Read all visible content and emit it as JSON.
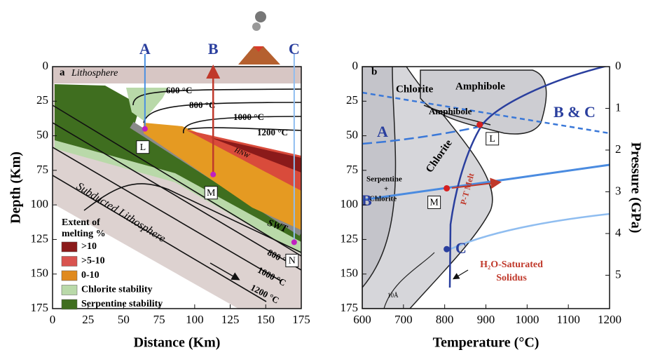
{
  "chart_data": [
    {
      "type": "section",
      "label": "a",
      "xlabel": "Distance (Km)",
      "ylabel": "Depth (Km)",
      "xlim": [
        0,
        175
      ],
      "xticks": [
        0,
        25,
        50,
        75,
        100,
        125,
        150,
        175
      ],
      "ylim": [
        0,
        175
      ],
      "yticks": [
        0,
        25,
        50,
        75,
        100,
        125,
        150,
        175
      ],
      "profiles": [
        {
          "name": "A",
          "x": 65,
          "color": "#4a90e2"
        },
        {
          "name": "B",
          "x": 113,
          "color": "#c0392b"
        },
        {
          "name": "C",
          "x": 170,
          "color": "#8fbdf0"
        }
      ],
      "points": [
        {
          "name": "L",
          "x": 65,
          "y": 45
        },
        {
          "name": "M",
          "x": 113,
          "y": 78
        },
        {
          "name": "N",
          "x": 170,
          "y": 127
        }
      ],
      "annotations": [
        "Lithosphere",
        "600 °C",
        "800 °C",
        "1000 °C",
        "1200 °C",
        "HNW",
        "SWT",
        "Subducted Lithosphere",
        "800 °C",
        "1000 °C",
        "1200 °C"
      ],
      "legend_title": [
        "Extent of",
        "melting %"
      ],
      "legend": [
        {
          "name": ">10",
          "color": "#8b1a1a"
        },
        {
          "name": ">5-10",
          "color": "#d9534f"
        },
        {
          "name": "0-10",
          "color": "#e08a1e"
        },
        {
          "name": "Chlorite stability",
          "color": "#b9d9a9"
        },
        {
          "name": "Serpentine stability",
          "color": "#3f6e1f"
        }
      ]
    },
    {
      "type": "phase",
      "label": "b",
      "xlabel": "Temperature (°C)",
      "y2label": "Pressure (GPa)",
      "xlim": [
        600,
        1200
      ],
      "xticks": [
        600,
        700,
        800,
        900,
        1000,
        1100,
        1200
      ],
      "ylim": [
        0,
        175
      ],
      "yticks": [
        0,
        25,
        50,
        75,
        100,
        125,
        150,
        175
      ],
      "y2lim": [
        0,
        5.8
      ],
      "y2ticks": [
        0,
        1,
        2,
        3,
        4,
        5
      ],
      "points": [
        {
          "name": "L",
          "x": 885,
          "y": 42,
          "color": "#d62020"
        },
        {
          "name": "M",
          "x": 805,
          "y": 88,
          "color": "#d62020"
        },
        {
          "x": 805,
          "y": 132,
          "color": "#2a3f9e"
        }
      ],
      "annotations": [
        "Chlorite",
        "Amphibole",
        "Amphibole",
        "Chlorite",
        "Serpentine",
        "+",
        "Chlorite",
        "A",
        "B & C",
        "B",
        "C",
        "P-T Melt",
        "H₂O-Saturated",
        "Solidus",
        "10Å"
      ]
    }
  ]
}
